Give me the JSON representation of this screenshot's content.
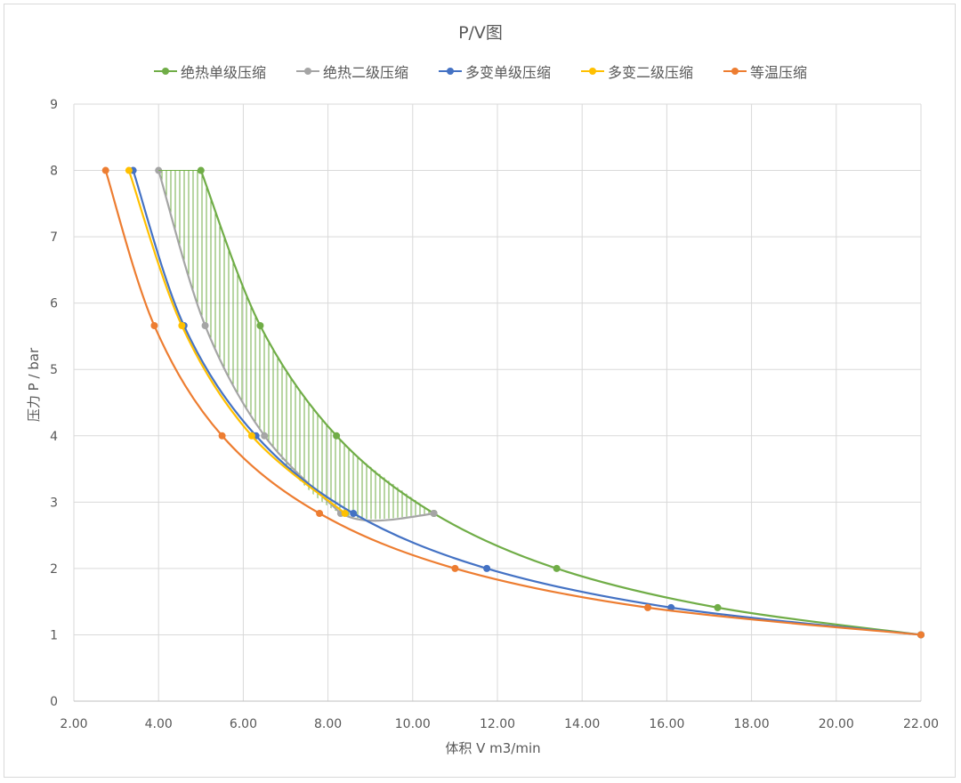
{
  "chart": {
    "title": "P/V图",
    "xlabel": "体积 V m3/min",
    "ylabel": "压力 P / bar"
  },
  "legend": [
    {
      "label": "绝热单级压缩",
      "color": "#70ad47"
    },
    {
      "label": "绝热二级压缩",
      "color": "#a5a5a5"
    },
    {
      "label": "多变单级压缩",
      "color": "#4472c4"
    },
    {
      "label": "多变二级压缩",
      "color": "#ffc000"
    },
    {
      "label": "等温压缩",
      "color": "#ed7d31"
    }
  ],
  "chart_data": {
    "type": "scatter",
    "title": "P/V图",
    "xlabel": "体积 V m3/min",
    "ylabel": "压力 P / bar",
    "xlim": [
      2.0,
      22.0
    ],
    "ylim": [
      0,
      9
    ],
    "x_ticks": [
      "2.00",
      "4.00",
      "6.00",
      "8.00",
      "10.00",
      "12.00",
      "14.00",
      "16.00",
      "18.00",
      "20.00",
      "22.00"
    ],
    "y_ticks": [
      "0",
      "1",
      "2",
      "3",
      "4",
      "5",
      "6",
      "7",
      "8",
      "9"
    ],
    "grid": true,
    "legend_position": "top",
    "smooth_lines": true,
    "series": [
      {
        "name": "绝热单级压缩",
        "color": "#70ad47",
        "points": [
          [
            5.0,
            8
          ],
          [
            6.4,
            5.66
          ],
          [
            8.2,
            4
          ],
          [
            10.5,
            2.83
          ],
          [
            13.4,
            2
          ],
          [
            17.2,
            1.41
          ],
          [
            22.0,
            1
          ]
        ]
      },
      {
        "name": "绝热二级压缩",
        "color": "#a5a5a5",
        "points": [
          [
            4.0,
            8
          ],
          [
            5.1,
            5.66
          ],
          [
            6.5,
            4
          ],
          [
            8.3,
            2.83
          ],
          [
            10.5,
            2.83
          ]
        ]
      },
      {
        "name": "多变单级压缩",
        "color": "#4472c4",
        "points": [
          [
            3.4,
            8
          ],
          [
            4.6,
            5.66
          ],
          [
            6.3,
            4
          ],
          [
            8.6,
            2.83
          ],
          [
            11.75,
            2
          ],
          [
            16.1,
            1.41
          ],
          [
            22.0,
            1
          ]
        ]
      },
      {
        "name": "多变二级压缩",
        "color": "#ffc000",
        "points": [
          [
            3.3,
            8
          ],
          [
            4.55,
            5.66
          ],
          [
            6.2,
            4
          ],
          [
            8.4,
            2.83
          ]
        ]
      },
      {
        "name": "等温压缩",
        "color": "#ed7d31",
        "points": [
          [
            2.75,
            8
          ],
          [
            3.9,
            5.66
          ],
          [
            5.5,
            4
          ],
          [
            7.8,
            2.83
          ],
          [
            11.0,
            2
          ],
          [
            15.55,
            1.41
          ],
          [
            22.0,
            1
          ]
        ]
      }
    ],
    "annotations": [
      {
        "type": "hatched_area",
        "description": "vertical green hatching between 绝热二级压缩 and 绝热单级压缩 curves",
        "color": "#70ad47"
      }
    ]
  }
}
